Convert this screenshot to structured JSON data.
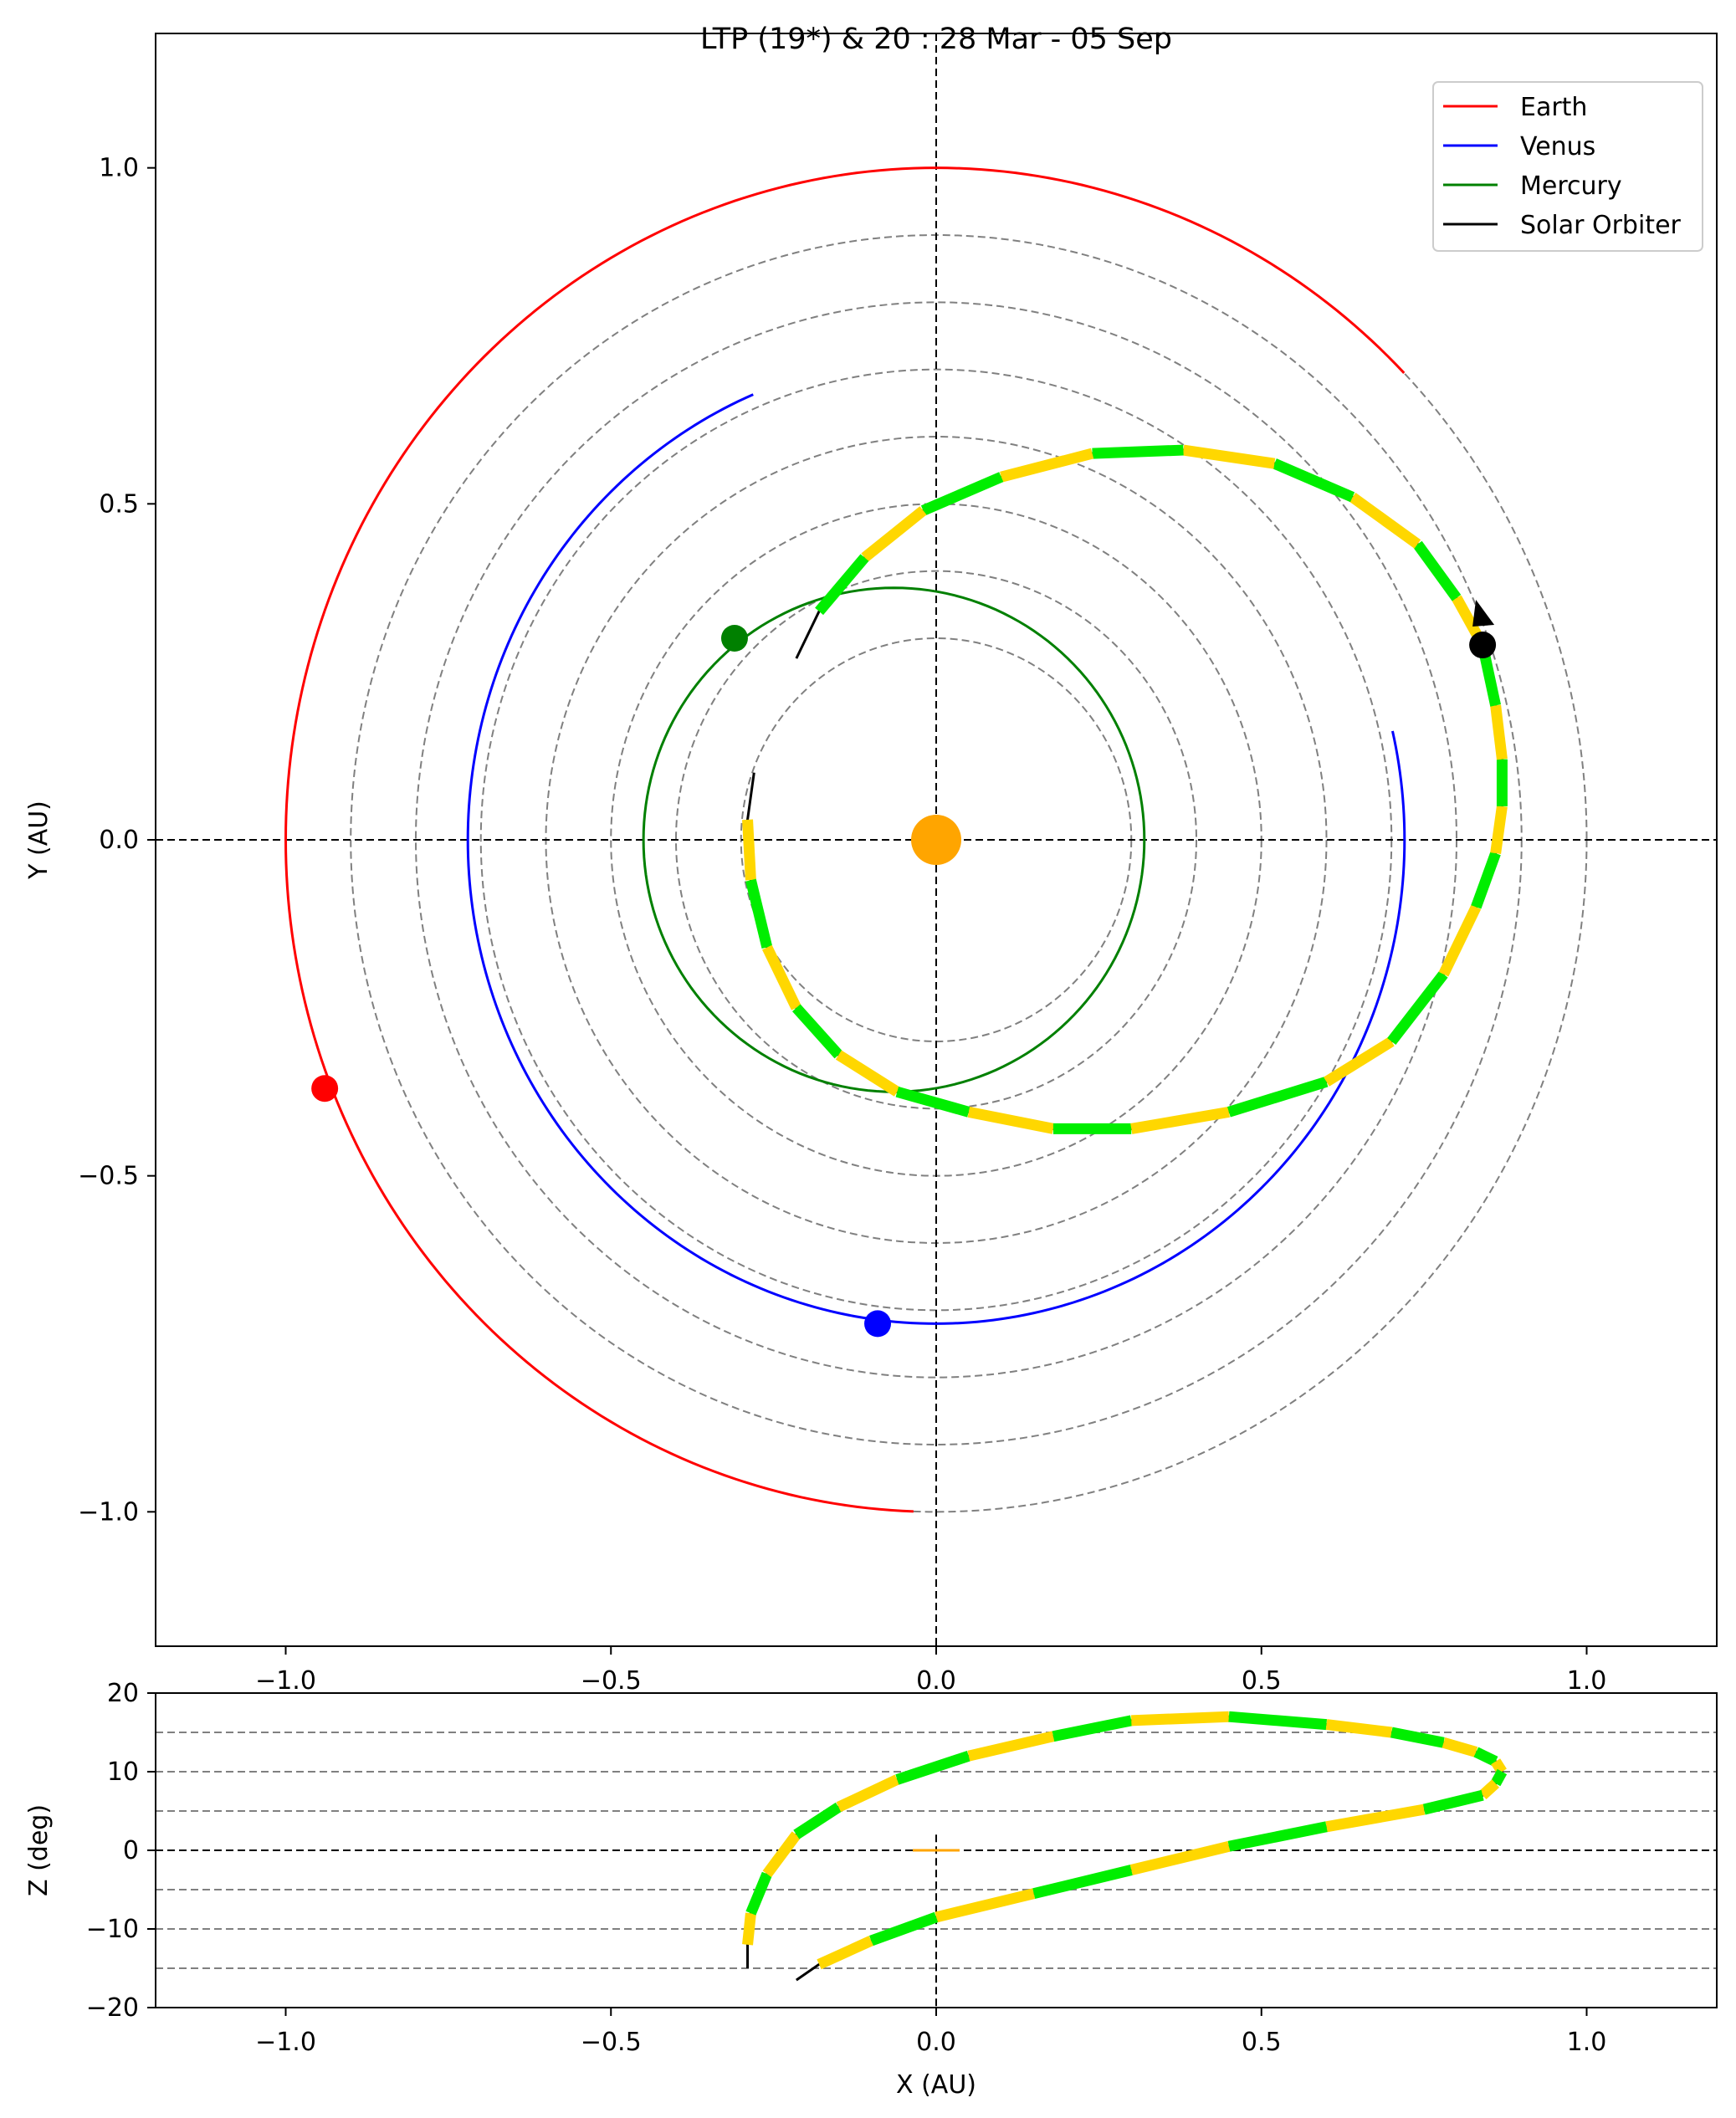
{
  "chart_data": [
    {
      "type": "scatter",
      "title": "LTP (19*) & 20 : 28 Mar - 05 Sep",
      "xlabel": "",
      "ylabel": "Y (AU)",
      "xlim": [
        -1.2,
        1.2
      ],
      "ylim": [
        -1.2,
        1.2
      ],
      "xticks": [
        "−1.0",
        "−0.5",
        "0.0",
        "0.5",
        "1.0"
      ],
      "yticks": [
        "−1.0",
        "−0.5",
        "0.0",
        "0.5",
        "1.0"
      ],
      "grid": "concentric dashed circles r = 0.3 to 1.0 AU; dashed axes at x=0, y=0",
      "legend_position": "top-right",
      "legend": [
        {
          "label": "Earth",
          "color": "#ff0000"
        },
        {
          "label": "Venus",
          "color": "#0000ff"
        },
        {
          "label": "Mercury",
          "color": "#008000"
        },
        {
          "label": "Solar Orbiter",
          "color": "#000000"
        }
      ],
      "sun": {
        "x": 0.0,
        "y": 0.0,
        "color": "#ffa500"
      },
      "planets": [
        {
          "name": "Earth",
          "color": "#ff0000",
          "radius": 1.0,
          "arc_start_deg": 44,
          "arc_end_deg": 268,
          "marker": {
            "x": -0.94,
            "y": -0.37
          }
        },
        {
          "name": "Venus",
          "color": "#0000ff",
          "radius": 0.72,
          "arc_start_deg": 113,
          "arc_end_deg": 373,
          "marker": {
            "x": -0.09,
            "y": -0.72
          }
        },
        {
          "name": "Mercury",
          "color": "#008000",
          "orbit_center": [
            -0.065,
            0.0
          ],
          "orbit_radii": [
            0.385,
            0.375
          ],
          "closed_orbit": true,
          "marker": {
            "x": -0.31,
            "y": 0.3
          }
        }
      ],
      "solar_orbiter": {
        "color": "#000000",
        "segment_colors": [
          "#ffd700",
          "#00ee00"
        ],
        "track": [
          [
            -0.28,
            0.1
          ],
          [
            -0.29,
            0.03
          ],
          [
            -0.285,
            -0.06
          ],
          [
            -0.26,
            -0.16
          ],
          [
            -0.215,
            -0.25
          ],
          [
            -0.15,
            -0.32
          ],
          [
            -0.06,
            -0.375
          ],
          [
            0.05,
            -0.405
          ],
          [
            0.18,
            -0.43
          ],
          [
            0.3,
            -0.43
          ],
          [
            0.45,
            -0.405
          ],
          [
            0.6,
            -0.36
          ],
          [
            0.7,
            -0.3
          ],
          [
            0.78,
            -0.2
          ],
          [
            0.83,
            -0.1
          ],
          [
            0.86,
            -0.02
          ],
          [
            0.87,
            0.05
          ],
          [
            0.87,
            0.12
          ],
          [
            0.86,
            0.2
          ],
          [
            0.84,
            0.29
          ],
          [
            0.8,
            0.36
          ],
          [
            0.74,
            0.44
          ],
          [
            0.64,
            0.51
          ],
          [
            0.52,
            0.56
          ],
          [
            0.38,
            0.58
          ],
          [
            0.24,
            0.575
          ],
          [
            0.1,
            0.54
          ],
          [
            -0.02,
            0.49
          ],
          [
            -0.11,
            0.42
          ],
          [
            -0.18,
            0.34
          ],
          [
            -0.215,
            0.27
          ]
        ],
        "current_position": {
          "x": 0.84,
          "y": 0.29
        },
        "direction": "counterclockwise"
      }
    },
    {
      "type": "line",
      "title": "",
      "xlabel": "X (AU)",
      "ylabel": "Z (deg)",
      "xlim": [
        -1.2,
        1.2
      ],
      "ylim": [
        -20,
        20
      ],
      "xticks": [
        "−1.0",
        "−0.5",
        "0.0",
        "0.5",
        "1.0"
      ],
      "yticks": [
        "−20",
        "−10",
        "0",
        "10",
        "20"
      ],
      "grid": "horizontal dashed lines every 5 deg",
      "sun": {
        "x": 0.0,
        "z": 0.0,
        "color": "#ffa500"
      },
      "solar_orbiter": {
        "track": [
          [
            -0.29,
            -15
          ],
          [
            -0.29,
            -12
          ],
          [
            -0.285,
            -8
          ],
          [
            -0.26,
            -3
          ],
          [
            -0.215,
            2
          ],
          [
            -0.15,
            5.5
          ],
          [
            -0.06,
            9
          ],
          [
            0.05,
            12
          ],
          [
            0.18,
            14.5
          ],
          [
            0.3,
            16.5
          ],
          [
            0.45,
            17
          ],
          [
            0.6,
            16
          ],
          [
            0.7,
            15
          ],
          [
            0.78,
            13.7
          ],
          [
            0.83,
            12.5
          ],
          [
            0.86,
            11.3
          ],
          [
            0.87,
            10
          ],
          [
            0.86,
            8.5
          ],
          [
            0.84,
            7
          ],
          [
            0.75,
            5.2
          ],
          [
            0.6,
            3
          ],
          [
            0.45,
            0.5
          ],
          [
            0.3,
            -2.5
          ],
          [
            0.15,
            -5.5
          ],
          [
            0.0,
            -8.5
          ],
          [
            -0.1,
            -11.5
          ],
          [
            -0.18,
            -14.5
          ],
          [
            -0.215,
            -16.5
          ]
        ]
      }
    }
  ]
}
